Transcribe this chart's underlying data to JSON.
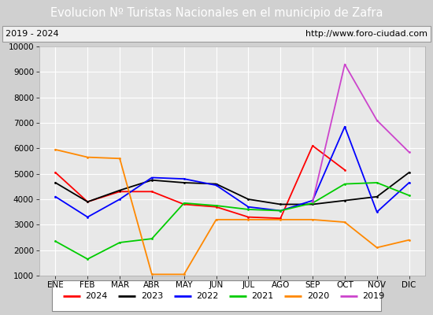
{
  "title": "Evolucion Nº Turistas Nacionales en el municipio de Zafra",
  "subtitle_left": "2019 - 2024",
  "subtitle_right": "http://www.foro-ciudad.com",
  "months": [
    "ENE",
    "FEB",
    "MAR",
    "ABR",
    "MAY",
    "JUN",
    "JUL",
    "AGO",
    "SEP",
    "OCT",
    "NOV",
    "DIC"
  ],
  "ylim": [
    1000,
    10000
  ],
  "yticks": [
    1000,
    2000,
    3000,
    4000,
    5000,
    6000,
    7000,
    8000,
    9000,
    10000
  ],
  "series": {
    "2024": {
      "color": "#ff0000",
      "data": [
        5050,
        3900,
        4300,
        4300,
        3800,
        3700,
        3300,
        3250,
        6100,
        5150,
        null,
        null
      ]
    },
    "2023": {
      "color": "#000000",
      "data": [
        4650,
        3900,
        4350,
        4750,
        4650,
        4600,
        4000,
        3800,
        3800,
        3950,
        4100,
        5050
      ]
    },
    "2022": {
      "color": "#0000ff",
      "data": [
        4100,
        3300,
        4000,
        4850,
        4800,
        4550,
        3700,
        3550,
        3950,
        6850,
        3500,
        4650
      ]
    },
    "2021": {
      "color": "#00cc00",
      "data": [
        2350,
        1650,
        2300,
        2450,
        3850,
        3750,
        3600,
        3550,
        3850,
        4600,
        4650,
        4150
      ]
    },
    "2020": {
      "color": "#ff8800",
      "data": [
        5950,
        5650,
        5600,
        1050,
        1050,
        3200,
        3200,
        3200,
        3200,
        3100,
        2100,
        2400
      ]
    },
    "2019": {
      "color": "#cc44cc",
      "data": [
        null,
        null,
        null,
        null,
        null,
        null,
        null,
        null,
        3900,
        9300,
        7100,
        5850
      ]
    }
  },
  "title_bg": "#5b8dd9",
  "title_color": "#ffffff",
  "subtitle_bg": "#f0f0f0",
  "plot_bg": "#e8e8e8",
  "grid_color": "#ffffff",
  "legend_order": [
    "2024",
    "2023",
    "2022",
    "2021",
    "2020",
    "2019"
  ]
}
